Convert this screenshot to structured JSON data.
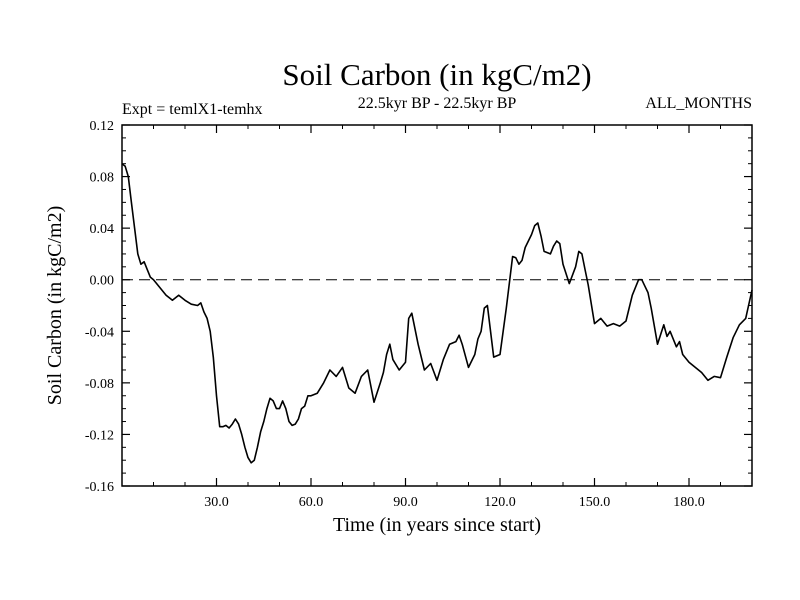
{
  "chart_data": {
    "type": "line",
    "title": "Soil Carbon (in kgC/m2)",
    "left_label": "Expt = temlX1-temhx",
    "center_label": "22.5kyr BP - 22.5kyr BP",
    "right_label": "ALL_MONTHS",
    "xlabel": "Time (in years since start)",
    "ylabel": "Soil Carbon (in kgC/m2)",
    "xlim": [
      0,
      200
    ],
    "ylim": [
      -0.16,
      0.12
    ],
    "x_ticks": [
      30,
      60,
      90,
      120,
      150,
      180
    ],
    "x_tick_labels": [
      "30.0",
      "60.0",
      "90.0",
      "120.0",
      "150.0",
      "180.0"
    ],
    "y_ticks": [
      0.12,
      0.08,
      0.04,
      0.0,
      -0.04,
      -0.08,
      -0.12,
      -0.16
    ],
    "y_tick_labels": [
      "0.12",
      "0.08",
      "0.04",
      "0.00",
      "-0.04",
      "-0.08",
      "-0.12",
      "-0.16"
    ],
    "reference_line_y": 0.0,
    "series": [
      {
        "name": "Soil Carbon",
        "x": [
          0,
          1,
          2,
          3,
          4,
          5,
          6,
          7,
          8,
          9,
          10,
          12,
          14,
          15,
          16,
          18,
          20,
          22,
          24,
          25,
          26,
          27,
          28,
          29,
          30,
          31,
          32,
          33,
          34,
          35,
          36,
          37,
          38,
          39,
          40,
          41,
          42,
          43,
          44,
          45,
          46,
          47,
          48,
          49,
          50,
          51,
          52,
          53,
          54,
          55,
          56,
          57,
          58,
          59,
          60,
          62,
          64,
          66,
          68,
          70,
          72,
          74,
          76,
          78,
          80,
          82,
          83,
          84,
          85,
          86,
          88,
          90,
          91,
          92,
          94,
          96,
          98,
          100,
          102,
          104,
          106,
          107,
          108,
          110,
          112,
          113,
          114,
          115,
          116,
          118,
          120,
          122,
          124,
          125,
          126,
          127,
          128,
          130,
          131,
          132,
          133,
          134,
          136,
          137,
          138,
          139,
          140,
          142,
          144,
          145,
          146,
          147,
          148,
          150,
          152,
          154,
          156,
          158,
          160,
          162,
          164,
          165,
          166,
          167,
          168,
          170,
          172,
          173,
          174,
          176,
          177,
          178,
          180,
          182,
          184,
          186,
          188,
          190,
          192,
          194,
          196,
          198,
          200
        ],
        "values": [
          0.09,
          0.088,
          0.08,
          0.06,
          0.04,
          0.02,
          0.012,
          0.014,
          0.008,
          0.002,
          0.0,
          -0.006,
          -0.012,
          -0.014,
          -0.016,
          -0.012,
          -0.016,
          -0.019,
          -0.02,
          -0.018,
          -0.025,
          -0.03,
          -0.04,
          -0.06,
          -0.09,
          -0.114,
          -0.114,
          -0.113,
          -0.115,
          -0.112,
          -0.108,
          -0.112,
          -0.12,
          -0.13,
          -0.138,
          -0.142,
          -0.14,
          -0.13,
          -0.118,
          -0.11,
          -0.1,
          -0.092,
          -0.094,
          -0.1,
          -0.1,
          -0.094,
          -0.1,
          -0.11,
          -0.113,
          -0.112,
          -0.108,
          -0.1,
          -0.098,
          -0.09,
          -0.09,
          -0.088,
          -0.08,
          -0.07,
          -0.075,
          -0.068,
          -0.084,
          -0.088,
          -0.075,
          -0.07,
          -0.095,
          -0.08,
          -0.072,
          -0.058,
          -0.05,
          -0.062,
          -0.07,
          -0.064,
          -0.03,
          -0.026,
          -0.05,
          -0.07,
          -0.065,
          -0.078,
          -0.062,
          -0.05,
          -0.048,
          -0.043,
          -0.05,
          -0.068,
          -0.058,
          -0.046,
          -0.04,
          -0.022,
          -0.02,
          -0.06,
          -0.058,
          -0.022,
          0.018,
          0.017,
          0.012,
          0.015,
          0.025,
          0.035,
          0.042,
          0.044,
          0.034,
          0.022,
          0.02,
          0.026,
          0.03,
          0.028,
          0.012,
          -0.003,
          0.01,
          0.022,
          0.02,
          0.008,
          -0.004,
          -0.034,
          -0.03,
          -0.036,
          -0.034,
          -0.036,
          -0.032,
          -0.012,
          0.0,
          0.0,
          -0.005,
          -0.01,
          -0.022,
          -0.05,
          -0.035,
          -0.044,
          -0.04,
          -0.052,
          -0.048,
          -0.058,
          -0.064,
          -0.068,
          -0.072,
          -0.078,
          -0.075,
          -0.076,
          -0.06,
          -0.045,
          -0.035,
          -0.03,
          -0.008
        ]
      }
    ]
  }
}
